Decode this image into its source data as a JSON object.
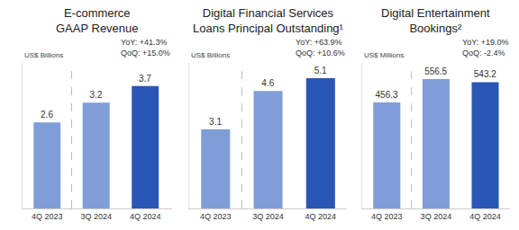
{
  "chart_data": [
    {
      "type": "bar",
      "title": "E-commerce\nGAAP Revenue",
      "ylabel": "US$ Billions",
      "categories": [
        "4Q 2023",
        "3Q 2024",
        "4Q 2024"
      ],
      "values": [
        2.6,
        3.2,
        3.7
      ],
      "colors": [
        "#7f9ed8",
        "#7f9ed8",
        "#2a57b5"
      ],
      "ylim": [
        0,
        4.4
      ],
      "grid": false,
      "data_labels": true,
      "tick_labels": "x",
      "annotations": [
        "YoY: +41.3%",
        "QoQ: +15.0%"
      ]
    },
    {
      "type": "bar",
      "title": "Digital Financial Services\nLoans Principal Outstanding¹",
      "ylabel": "US$ Billions",
      "categories": [
        "4Q 2023",
        "3Q 2024",
        "4Q 2024"
      ],
      "values": [
        3.1,
        4.6,
        5.1
      ],
      "colors": [
        "#7f9ed8",
        "#7f9ed8",
        "#2a57b5"
      ],
      "ylim": [
        0,
        5.7
      ],
      "grid": false,
      "data_labels": true,
      "tick_labels": "x",
      "annotations": [
        "YoY: +63.9%",
        "QoQ: +10.6%"
      ]
    },
    {
      "type": "bar",
      "title": "Digital Entertainment\nBookings²",
      "ylabel": "US$ Millions",
      "categories": [
        "4Q 2023",
        "3Q 2024",
        "4Q 2024"
      ],
      "values": [
        456.3,
        556.5,
        543.2
      ],
      "colors": [
        "#7f9ed8",
        "#7f9ed8",
        "#2a57b5"
      ],
      "ylim": [
        0,
        626
      ],
      "grid": false,
      "data_labels": true,
      "tick_labels": "x",
      "annotations": [
        "YoY: +19.0%",
        "QoQ: -2.4%"
      ]
    }
  ]
}
